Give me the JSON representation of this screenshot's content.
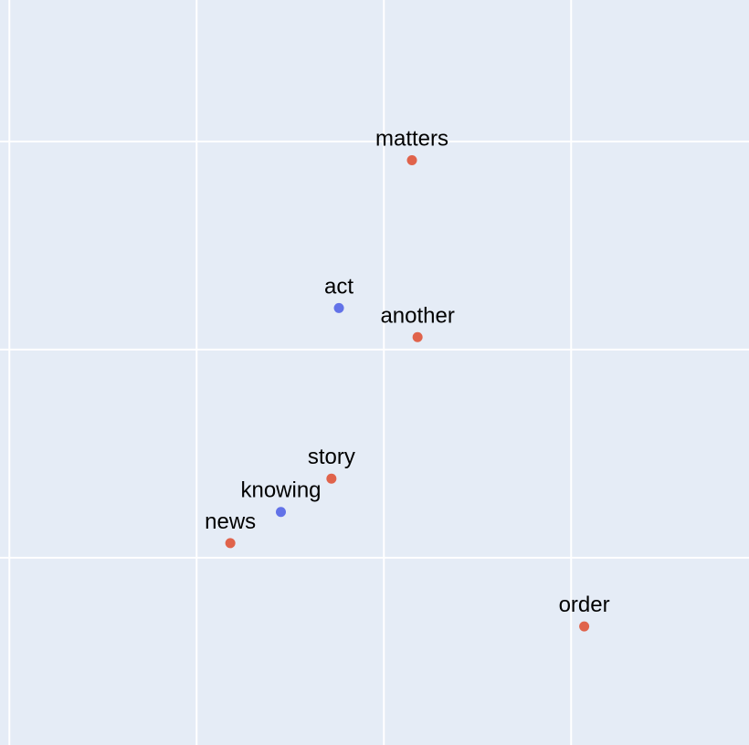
{
  "chart_data": {
    "type": "scatter",
    "title": "",
    "xlabel": "",
    "ylabel": "",
    "grid": true,
    "legend": "none",
    "xlim": [
      -1.05,
      2.95
    ],
    "ylim": [
      -0.9,
      2.68
    ],
    "xgrid": [
      -1,
      0,
      1,
      2
    ],
    "ygrid": [
      0,
      1,
      2
    ],
    "colors": {
      "background": "#e5ecf6",
      "grid": "#ffffff",
      "series_a": "#e0634b",
      "series_b": "#6272e8"
    },
    "points": [
      {
        "label": "matters",
        "x": 1.15,
        "y": 1.91,
        "group": "a"
      },
      {
        "label": "act",
        "x": 0.76,
        "y": 1.2,
        "group": "b"
      },
      {
        "label": "another",
        "x": 1.18,
        "y": 1.06,
        "group": "a"
      },
      {
        "label": "story",
        "x": 0.72,
        "y": 0.38,
        "group": "a"
      },
      {
        "label": "knowing",
        "x": 0.45,
        "y": 0.22,
        "group": "b"
      },
      {
        "label": "news",
        "x": 0.18,
        "y": 0.07,
        "group": "a"
      },
      {
        "label": "order",
        "x": 2.07,
        "y": -0.33,
        "group": "a"
      }
    ]
  }
}
